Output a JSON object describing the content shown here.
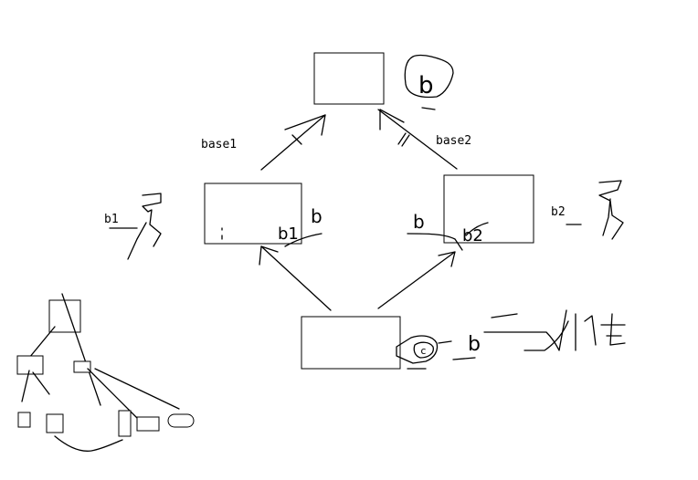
{
  "labels": {
    "base1": "base1",
    "base2": "base2",
    "b1": "b1",
    "b2": "b2"
  },
  "handwriting": {
    "top_b": "b",
    "left_b": "b",
    "left_b1": "b1",
    "right_b": "b",
    "right_b2": "b2",
    "bottom_c": "c",
    "bottom_b": "b"
  },
  "colors": {
    "stroke": "#000000",
    "background": "#ffffff"
  }
}
